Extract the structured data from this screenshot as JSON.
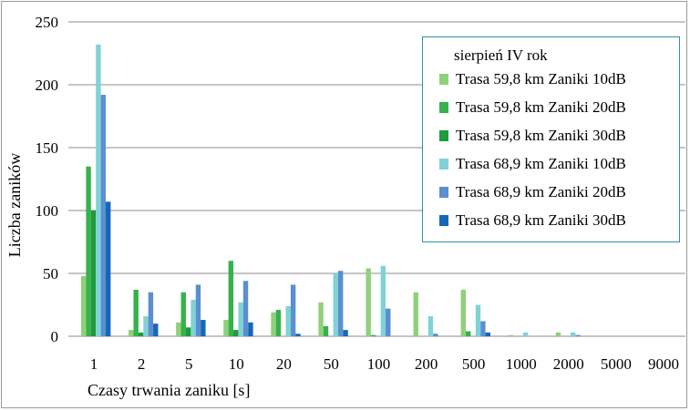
{
  "chart_data": {
    "type": "bar",
    "categories": [
      "1",
      "2",
      "5",
      "10",
      "20",
      "50",
      "100",
      "200",
      "500",
      "1000",
      "2000",
      "5000",
      "9000"
    ],
    "xlabel": "Czasy trwania zaniku [s]",
    "ylabel": "Liczba zaników",
    "ylim": [
      0,
      250
    ],
    "yticks": [
      0,
      50,
      100,
      150,
      200,
      250
    ],
    "grid": true,
    "legend_title": "sierpień IV rok",
    "legend_placement": "top-right",
    "series": [
      {
        "name": "Trasa 59,8 km Zaniki 10dB",
        "color": "#8fd07b",
        "values": [
          48,
          5,
          11,
          13,
          19,
          27,
          54,
          35,
          37,
          1,
          3,
          0,
          0
        ]
      },
      {
        "name": "Trasa 59,8 km Zaniki 20dB",
        "color": "#35b24b",
        "values": [
          135,
          37,
          35,
          60,
          21,
          8,
          1,
          0,
          4,
          0,
          0,
          0,
          0
        ]
      },
      {
        "name": "Trasa 59,8 km Zaniki 30dB",
        "color": "#1f9a3c",
        "values": [
          100,
          3,
          7,
          5,
          0,
          0,
          0,
          0,
          0,
          0,
          0,
          0,
          0
        ]
      },
      {
        "name": "Trasa 68,9 km Zaniki 10dB",
        "color": "#7fd3d6",
        "values": [
          232,
          16,
          29,
          27,
          24,
          50,
          56,
          16,
          25,
          3,
          3,
          0,
          0
        ]
      },
      {
        "name": "Trasa 68,9 km Zaniki 20dB",
        "color": "#5a8fd0",
        "values": [
          192,
          35,
          41,
          44,
          41,
          52,
          22,
          2,
          12,
          0,
          1,
          0,
          0
        ]
      },
      {
        "name": "Trasa 68,9 km Zaniki 30dB",
        "color": "#1667b8",
        "values": [
          107,
          10,
          13,
          11,
          2,
          5,
          0,
          0,
          3,
          0,
          0,
          0,
          0
        ]
      }
    ]
  }
}
